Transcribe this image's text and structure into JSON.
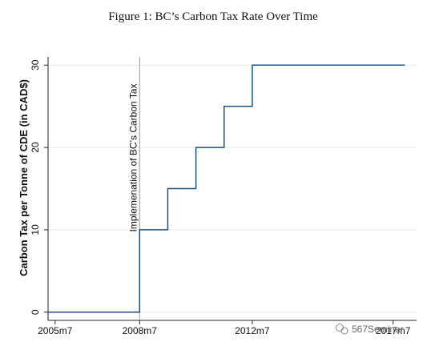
{
  "caption": "Figure 1: BC’s Carbon Tax Rate Over Time",
  "watermark": "567Seminar",
  "colors": {
    "series": "#1f4f7a",
    "grid": "#e8e8e8",
    "axis": "#222222",
    "vline": "#9a9a9a"
  },
  "chart_data": {
    "type": "line",
    "title": "",
    "xlabel": "",
    "ylabel": "Carbon Tax per Tonne of CDE (in CAD$)",
    "x_tick_labels": [
      "2005m7",
      "2008m7",
      "2012m7",
      "2017m7"
    ],
    "x_ticks": [
      "2005-07",
      "2008-07",
      "2012-07",
      "2017-07"
    ],
    "xlim": [
      "2005-04",
      "2018-05"
    ],
    "y_ticks": [
      0,
      10,
      20,
      30
    ],
    "ylim": [
      -1,
      31
    ],
    "grid": true,
    "series": [
      {
        "x": [
          "2005-04",
          "2008-07",
          "2009-07",
          "2010-07",
          "2011-07",
          "2012-07",
          "2017-12"
        ],
        "values": [
          0,
          10,
          15,
          20,
          25,
          30,
          30
        ],
        "step": "post"
      }
    ],
    "annotations": [
      {
        "x": "2008-07",
        "text": "Implemenation of BC’s Carbon Tax"
      }
    ]
  }
}
